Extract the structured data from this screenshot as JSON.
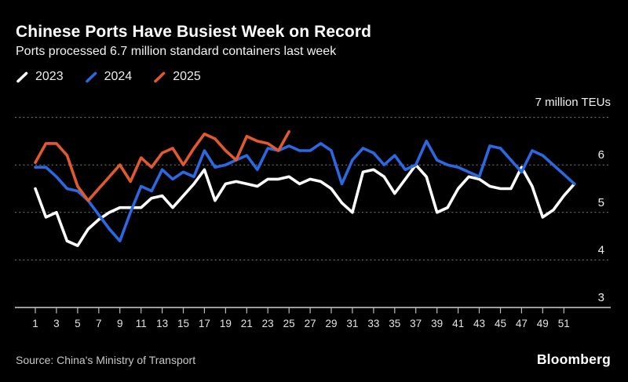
{
  "header": {
    "title": "Chinese Ports Have Busiest Week on Record",
    "subtitle": "Ports processed 6.7 million standard containers last week"
  },
  "legend": {
    "items": [
      {
        "label": "2023",
        "color": "#ffffff"
      },
      {
        "label": "2024",
        "color": "#2b68e1"
      },
      {
        "label": "2025",
        "color": "#e2582f"
      }
    ]
  },
  "chart_data": {
    "type": "line",
    "title": "Chinese Ports Have Busiest Week on Record",
    "subtitle": "Ports processed 6.7 million standard containers last week",
    "unit_top_label": "7 million TEUs",
    "x_unit": "week of year",
    "x_range": [
      1,
      52
    ],
    "x_tick_labels": [
      1,
      3,
      5,
      7,
      9,
      11,
      13,
      15,
      17,
      19,
      21,
      23,
      25,
      27,
      29,
      31,
      33,
      35,
      37,
      39,
      41,
      43,
      45,
      47,
      49,
      51
    ],
    "ylim": [
      3,
      7
    ],
    "y_ticks": [
      7,
      6,
      5,
      4,
      3
    ],
    "grid": "horizontal-dotted",
    "legend_position": "top-left",
    "series": [
      {
        "name": "2023",
        "color": "#ffffff",
        "values": [
          5.5,
          4.9,
          5.0,
          4.4,
          4.3,
          4.65,
          4.85,
          5.0,
          5.1,
          5.1,
          5.1,
          5.3,
          5.35,
          5.1,
          5.35,
          5.6,
          5.9,
          5.25,
          5.6,
          5.65,
          5.6,
          5.55,
          5.7,
          5.7,
          5.75,
          5.6,
          5.7,
          5.65,
          5.5,
          5.2,
          5.0,
          5.85,
          5.9,
          5.75,
          5.4,
          5.7,
          6.0,
          5.75,
          5.0,
          5.1,
          5.5,
          5.75,
          5.7,
          5.55,
          5.5,
          5.5,
          5.95,
          5.55,
          4.9,
          5.05,
          5.35,
          5.6
        ]
      },
      {
        "name": "2024",
        "color": "#2b68e1",
        "values": [
          5.95,
          5.95,
          5.75,
          5.5,
          5.45,
          5.25,
          4.95,
          4.65,
          4.4,
          5.0,
          5.55,
          5.45,
          5.9,
          5.7,
          5.85,
          5.75,
          6.3,
          5.95,
          6.0,
          6.1,
          6.2,
          5.9,
          6.35,
          6.3,
          6.4,
          6.3,
          6.3,
          6.45,
          6.3,
          5.6,
          6.1,
          6.35,
          6.25,
          6.0,
          6.2,
          5.9,
          6.0,
          6.5,
          6.1,
          6.0,
          5.95,
          5.85,
          5.75,
          6.4,
          6.35,
          6.1,
          5.85,
          6.3,
          6.2,
          6.0,
          5.8,
          5.6
        ]
      },
      {
        "name": "2025",
        "color": "#e2582f",
        "values": [
          6.05,
          6.45,
          6.45,
          6.2,
          5.55,
          5.25,
          5.5,
          5.75,
          6.0,
          5.65,
          6.15,
          5.95,
          6.25,
          6.35,
          6.0,
          6.35,
          6.65,
          6.55,
          6.3,
          6.1,
          6.6,
          6.5,
          6.45,
          6.3,
          6.7
        ]
      }
    ]
  },
  "footer": {
    "source": "Source: China's Ministry of Transport",
    "brand": "Bloomberg"
  }
}
